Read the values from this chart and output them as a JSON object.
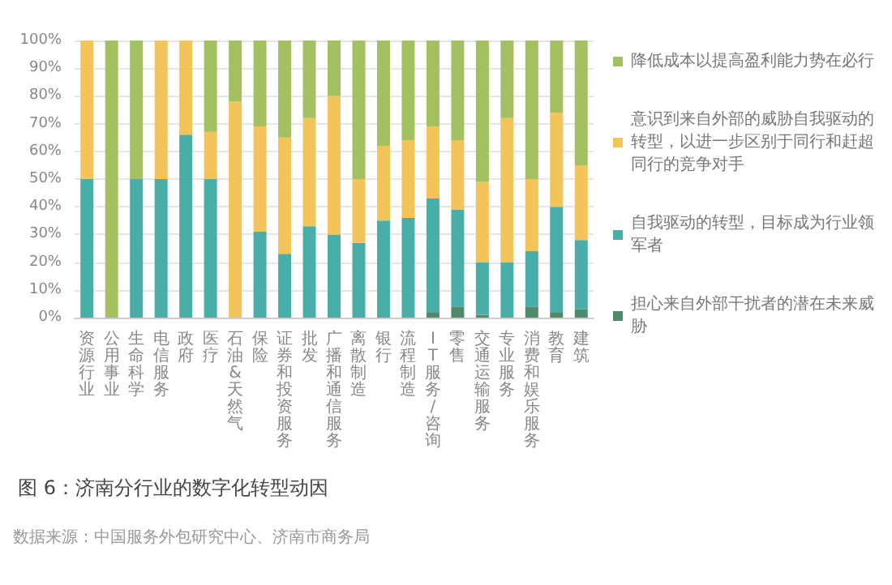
{
  "chart_data": {
    "type": "bar",
    "stacked": true,
    "title": "图 6：济南分行业的数字化转型动因",
    "annotations": [
      "数据来源：中国服务外包研究中心、济南市商务局"
    ],
    "categories": [
      "资源行业",
      "公用事业",
      "生命科学",
      "电信服务",
      "政府",
      "医疗",
      "石油&天然气",
      "保险",
      "证券和投资服务",
      "批发",
      "广播和通信服务",
      "离散制造",
      "银行",
      "流程制造",
      "IT服务/咨询",
      "零售",
      "交通运输服务",
      "专业服务",
      "消费和娱乐服务",
      "教育",
      "建筑"
    ],
    "series": [
      {
        "name": "担心来自外部干扰者的潜在未来威胁",
        "color": "#4f8a6a",
        "values": [
          0,
          0,
          0,
          0,
          0,
          0,
          0,
          0,
          0,
          0,
          0,
          0,
          0,
          0,
          2,
          4,
          1,
          0,
          4,
          2,
          3
        ]
      },
      {
        "name": "自我驱动的转型，目标成为行业领军者",
        "color": "#4aaea8",
        "values": [
          50,
          0,
          50,
          50,
          66,
          50,
          0,
          31,
          23,
          33,
          30,
          27,
          35,
          36,
          41,
          35,
          19,
          20,
          20,
          38,
          25
        ]
      },
      {
        "name": "意识到来自外部的威胁自我驱动的转型，以进一步区别于同行和赶超同行的竞争对手",
        "color": "#f2c45a",
        "values": [
          50,
          0,
          0,
          50,
          34,
          17,
          78,
          38,
          42,
          39,
          50,
          23,
          27,
          28,
          26,
          25,
          29,
          52,
          26,
          34,
          27
        ]
      },
      {
        "name": "降低成本以提高盈利能力势在必行",
        "color": "#a4c162",
        "values": [
          0,
          100,
          50,
          0,
          0,
          33,
          22,
          31,
          35,
          28,
          20,
          50,
          38,
          36,
          31,
          36,
          51,
          28,
          50,
          26,
          45
        ]
      }
    ],
    "ylim": [
      0,
      100
    ],
    "yticks": [
      {
        "value": 0,
        "label": "0%"
      },
      {
        "value": 10,
        "label": "10%"
      },
      {
        "value": 20,
        "label": "20%"
      },
      {
        "value": 30,
        "label": "30%"
      },
      {
        "value": 40,
        "label": "40%"
      },
      {
        "value": 50,
        "label": "50%"
      },
      {
        "value": 60,
        "label": "60%"
      },
      {
        "value": 70,
        "label": "70%"
      },
      {
        "value": 80,
        "label": "80%"
      },
      {
        "value": 90,
        "label": "90%"
      },
      {
        "value": 100,
        "label": "100%"
      }
    ],
    "grid": "y",
    "legend": "right"
  }
}
